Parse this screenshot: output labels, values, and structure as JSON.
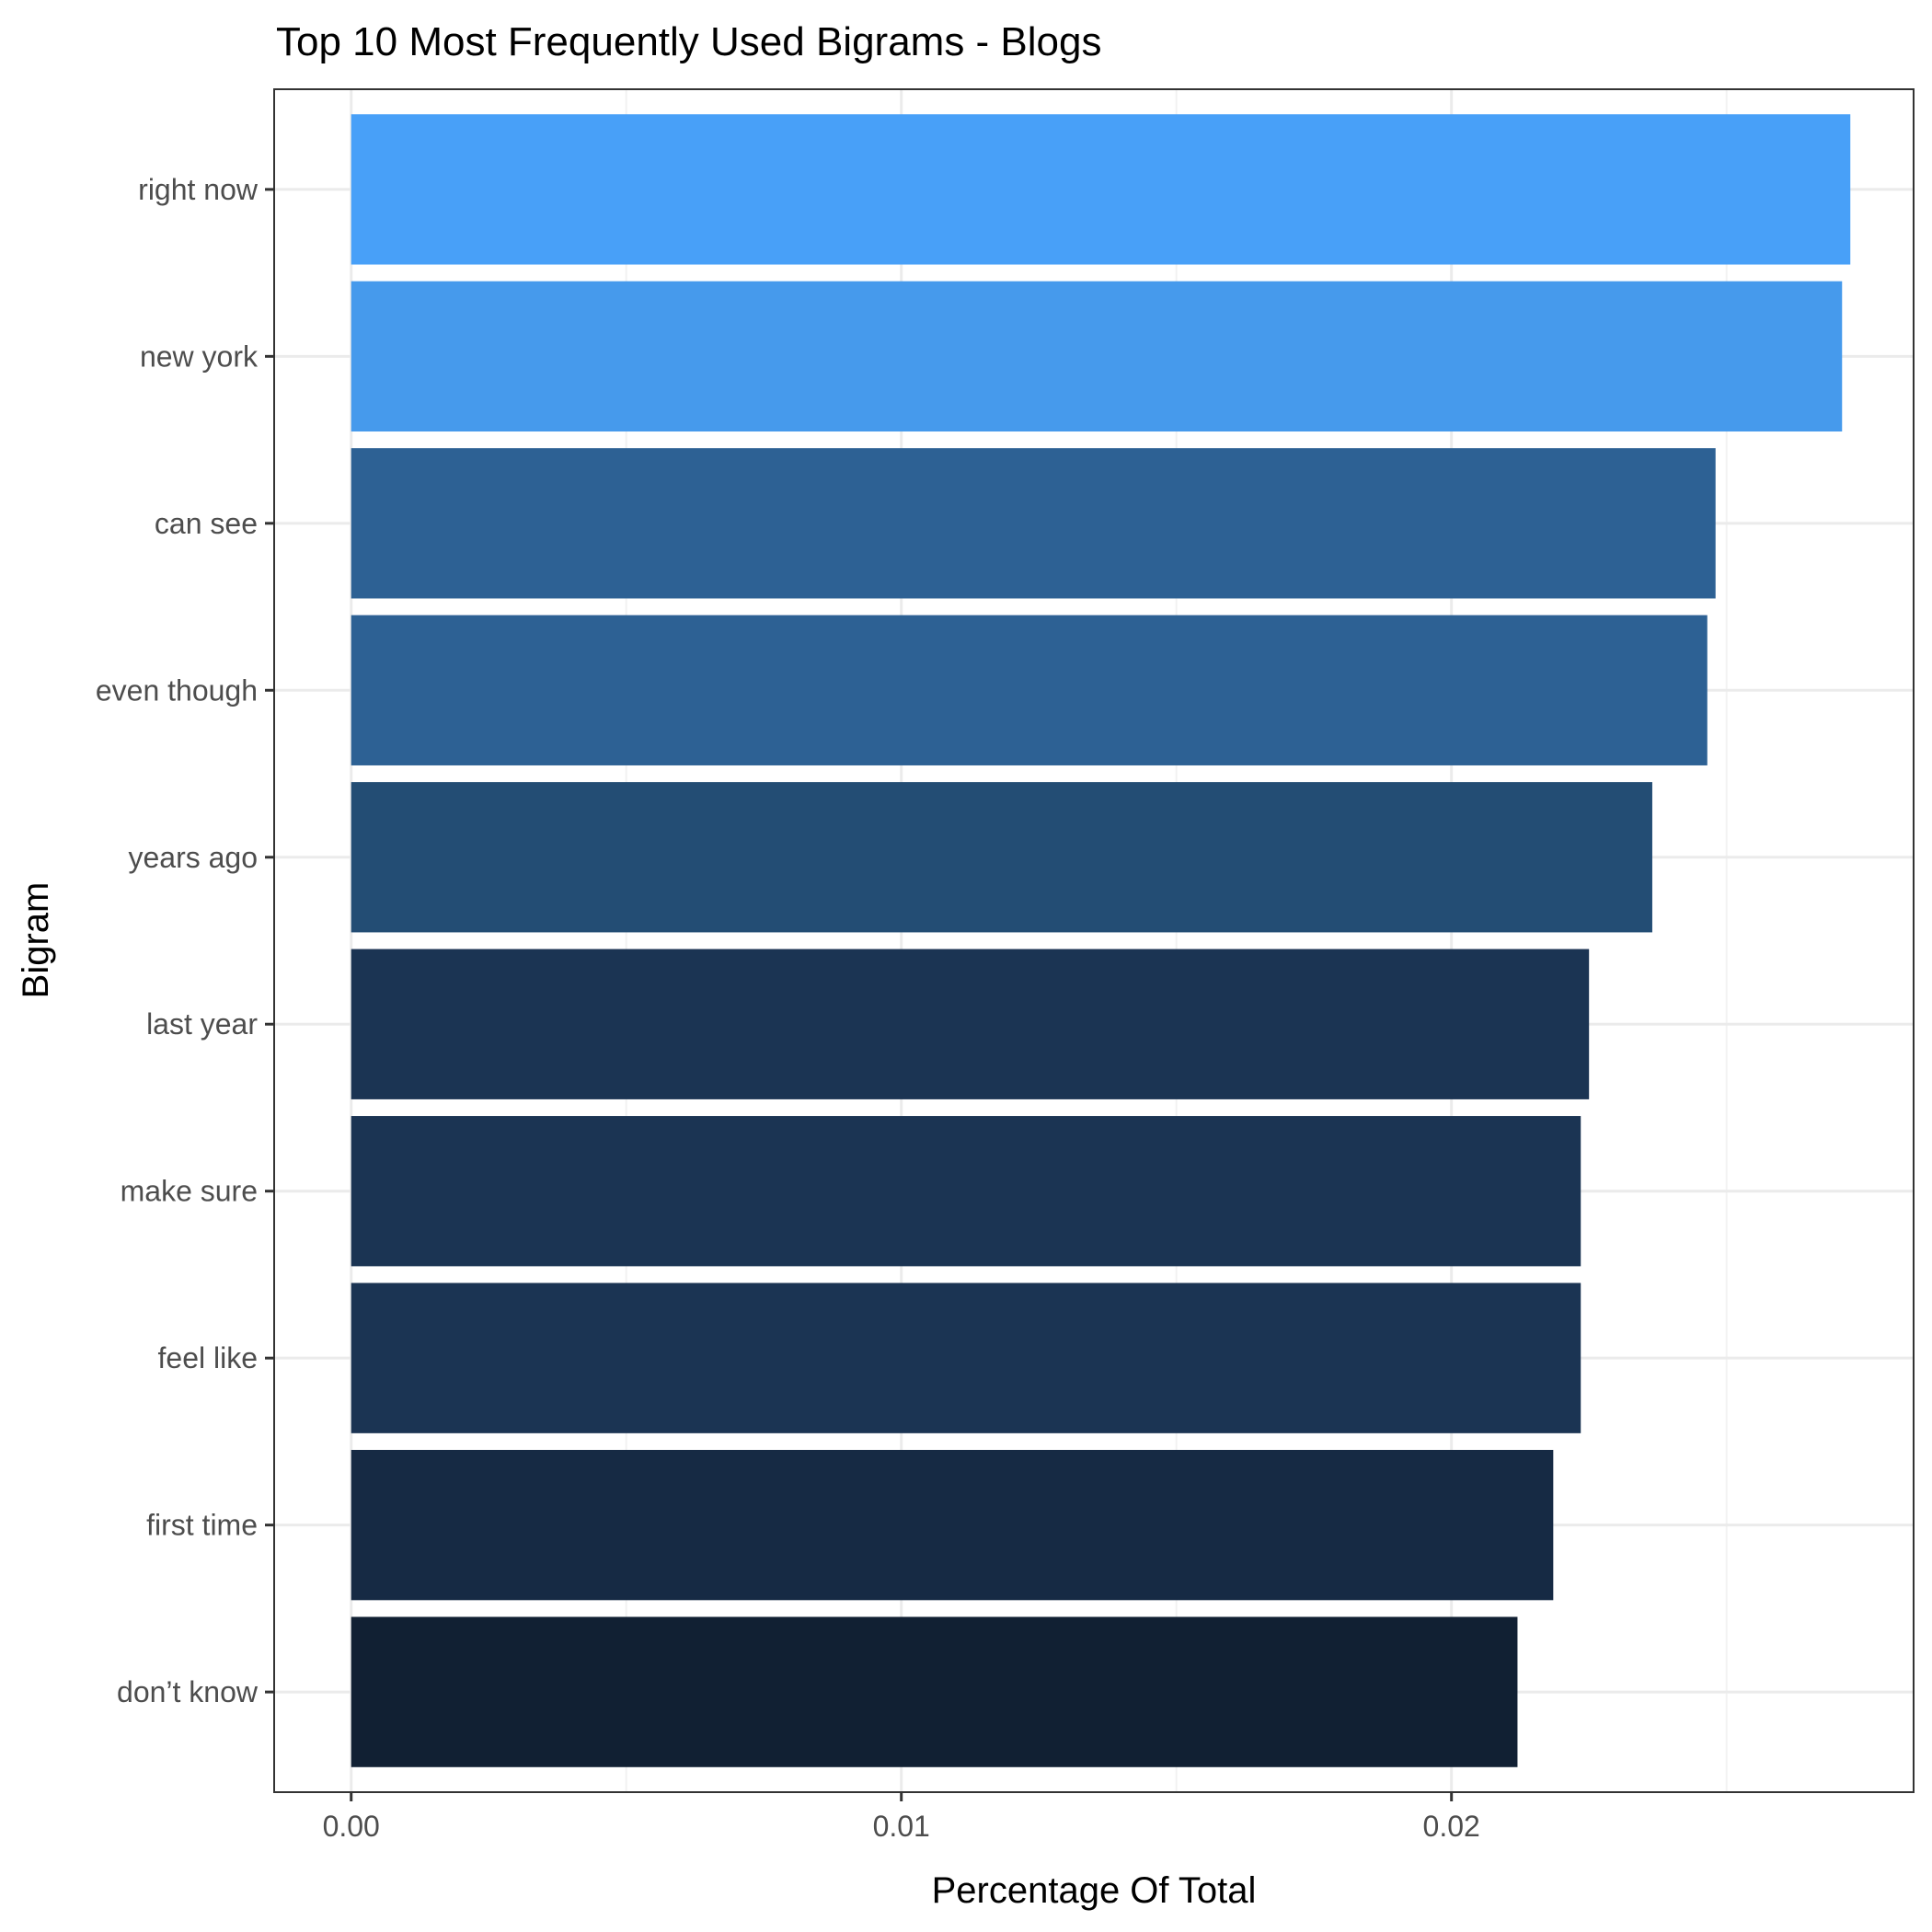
{
  "chart_data": {
    "type": "bar",
    "orientation": "horizontal",
    "title": "Top 10 Most Frequently Used Bigrams - Blogs",
    "xlabel": "Percentage Of Total",
    "ylabel": "Bigram",
    "categories": [
      "right now",
      "new york",
      "can see",
      "even though",
      "years ago",
      "last year",
      "make sure",
      "feel like",
      "first time",
      "don’t know"
    ],
    "values": [
      0.02725,
      0.0271,
      0.0248,
      0.02465,
      0.02365,
      0.0225,
      0.02235,
      0.02235,
      0.02185,
      0.0212
    ],
    "colors": [
      "#48A0F8",
      "#469AEC",
      "#2D6194",
      "#2D6194",
      "#234D74",
      "#1B3453",
      "#1B3453",
      "#1B3453",
      "#162A44",
      "#112033"
    ],
    "xlim": [
      -0.0014,
      0.0284
    ],
    "xticks": [
      0.0,
      0.01,
      0.02
    ],
    "xtick_labels": [
      "0.00",
      "0.01",
      "0.02"
    ],
    "grid": true,
    "legend": "none"
  }
}
